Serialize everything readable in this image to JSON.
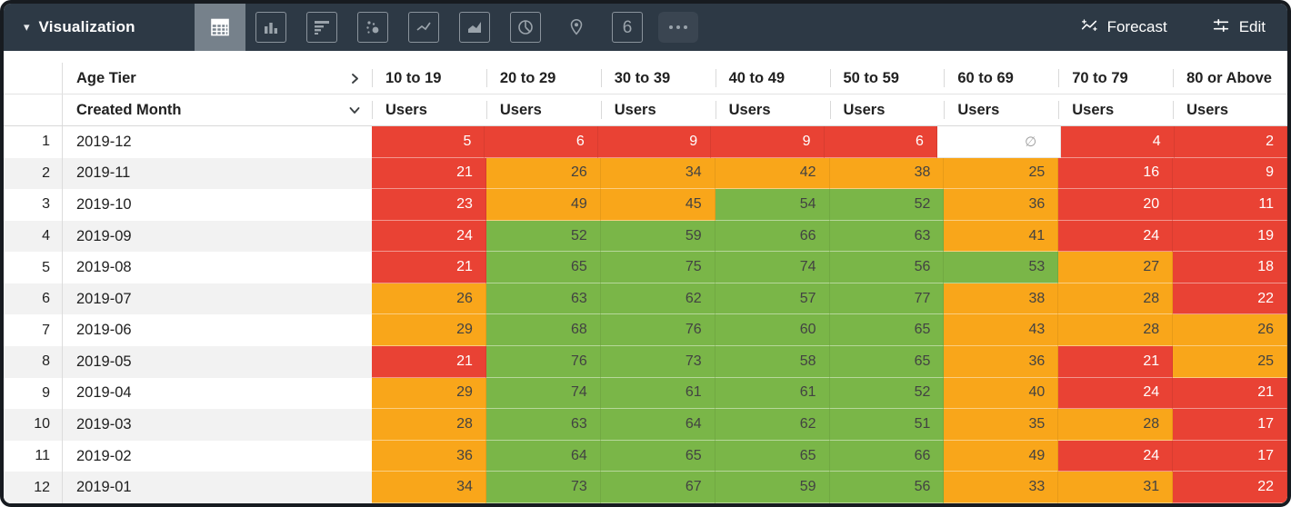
{
  "topbar": {
    "title": "Visualization",
    "forecast_label": "Forecast",
    "edit_label": "Edit",
    "single_value_glyph": "6",
    "viz_types": [
      "table",
      "column-chart",
      "bar-chart",
      "scatter-plot",
      "line-chart",
      "area-chart",
      "pie-chart",
      "map",
      "single-value",
      "more-options"
    ],
    "selected_viz": "table"
  },
  "table": {
    "dimension_header": "Age Tier",
    "row_header": "Created Month",
    "measure_label": "Users",
    "tiers": [
      "10 to 19",
      "20 to 29",
      "30 to 39",
      "40 to 49",
      "50 to 59",
      "60 to 69",
      "70 to 79",
      "80 or Above"
    ],
    "null_symbol": "∅",
    "rows": [
      {
        "index": 1,
        "month": "2019-12",
        "cells": [
          {
            "v": "5",
            "c": "red"
          },
          {
            "v": "6",
            "c": "red"
          },
          {
            "v": "9",
            "c": "red"
          },
          {
            "v": "9",
            "c": "red"
          },
          {
            "v": "6",
            "c": "red"
          },
          {
            "v": null,
            "c": "null"
          },
          {
            "v": "4",
            "c": "red"
          },
          {
            "v": "2",
            "c": "red"
          }
        ]
      },
      {
        "index": 2,
        "month": "2019-11",
        "cells": [
          {
            "v": "21",
            "c": "red"
          },
          {
            "v": "26",
            "c": "orange"
          },
          {
            "v": "34",
            "c": "orange"
          },
          {
            "v": "42",
            "c": "orange"
          },
          {
            "v": "38",
            "c": "orange"
          },
          {
            "v": "25",
            "c": "orange"
          },
          {
            "v": "16",
            "c": "red"
          },
          {
            "v": "9",
            "c": "red"
          }
        ]
      },
      {
        "index": 3,
        "month": "2019-10",
        "cells": [
          {
            "v": "23",
            "c": "red"
          },
          {
            "v": "49",
            "c": "orange"
          },
          {
            "v": "45",
            "c": "orange"
          },
          {
            "v": "54",
            "c": "green"
          },
          {
            "v": "52",
            "c": "green"
          },
          {
            "v": "36",
            "c": "orange"
          },
          {
            "v": "20",
            "c": "red"
          },
          {
            "v": "11",
            "c": "red"
          }
        ]
      },
      {
        "index": 4,
        "month": "2019-09",
        "cells": [
          {
            "v": "24",
            "c": "red"
          },
          {
            "v": "52",
            "c": "green"
          },
          {
            "v": "59",
            "c": "green"
          },
          {
            "v": "66",
            "c": "green"
          },
          {
            "v": "63",
            "c": "green"
          },
          {
            "v": "41",
            "c": "orange"
          },
          {
            "v": "24",
            "c": "red"
          },
          {
            "v": "19",
            "c": "red"
          }
        ]
      },
      {
        "index": 5,
        "month": "2019-08",
        "cells": [
          {
            "v": "21",
            "c": "red"
          },
          {
            "v": "65",
            "c": "green"
          },
          {
            "v": "75",
            "c": "green"
          },
          {
            "v": "74",
            "c": "green"
          },
          {
            "v": "56",
            "c": "green"
          },
          {
            "v": "53",
            "c": "green"
          },
          {
            "v": "27",
            "c": "orange"
          },
          {
            "v": "18",
            "c": "red"
          }
        ]
      },
      {
        "index": 6,
        "month": "2019-07",
        "cells": [
          {
            "v": "26",
            "c": "orange"
          },
          {
            "v": "63",
            "c": "green"
          },
          {
            "v": "62",
            "c": "green"
          },
          {
            "v": "57",
            "c": "green"
          },
          {
            "v": "77",
            "c": "green"
          },
          {
            "v": "38",
            "c": "orange"
          },
          {
            "v": "28",
            "c": "orange"
          },
          {
            "v": "22",
            "c": "red"
          }
        ]
      },
      {
        "index": 7,
        "month": "2019-06",
        "cells": [
          {
            "v": "29",
            "c": "orange"
          },
          {
            "v": "68",
            "c": "green"
          },
          {
            "v": "76",
            "c": "green"
          },
          {
            "v": "60",
            "c": "green"
          },
          {
            "v": "65",
            "c": "green"
          },
          {
            "v": "43",
            "c": "orange"
          },
          {
            "v": "28",
            "c": "orange"
          },
          {
            "v": "26",
            "c": "orange"
          }
        ]
      },
      {
        "index": 8,
        "month": "2019-05",
        "cells": [
          {
            "v": "21",
            "c": "red"
          },
          {
            "v": "76",
            "c": "green"
          },
          {
            "v": "73",
            "c": "green"
          },
          {
            "v": "58",
            "c": "green"
          },
          {
            "v": "65",
            "c": "green"
          },
          {
            "v": "36",
            "c": "orange"
          },
          {
            "v": "21",
            "c": "red"
          },
          {
            "v": "25",
            "c": "orange"
          }
        ]
      },
      {
        "index": 9,
        "month": "2019-04",
        "cells": [
          {
            "v": "29",
            "c": "orange"
          },
          {
            "v": "74",
            "c": "green"
          },
          {
            "v": "61",
            "c": "green"
          },
          {
            "v": "61",
            "c": "green"
          },
          {
            "v": "52",
            "c": "green"
          },
          {
            "v": "40",
            "c": "orange"
          },
          {
            "v": "24",
            "c": "red"
          },
          {
            "v": "21",
            "c": "red"
          }
        ]
      },
      {
        "index": 10,
        "month": "2019-03",
        "cells": [
          {
            "v": "28",
            "c": "orange"
          },
          {
            "v": "63",
            "c": "green"
          },
          {
            "v": "64",
            "c": "green"
          },
          {
            "v": "62",
            "c": "green"
          },
          {
            "v": "51",
            "c": "green"
          },
          {
            "v": "35",
            "c": "orange"
          },
          {
            "v": "28",
            "c": "orange"
          },
          {
            "v": "17",
            "c": "red"
          }
        ]
      },
      {
        "index": 11,
        "month": "2019-02",
        "cells": [
          {
            "v": "36",
            "c": "orange"
          },
          {
            "v": "64",
            "c": "green"
          },
          {
            "v": "65",
            "c": "green"
          },
          {
            "v": "65",
            "c": "green"
          },
          {
            "v": "66",
            "c": "green"
          },
          {
            "v": "49",
            "c": "orange"
          },
          {
            "v": "24",
            "c": "red"
          },
          {
            "v": "17",
            "c": "red"
          }
        ]
      },
      {
        "index": 12,
        "month": "2019-01",
        "cells": [
          {
            "v": "34",
            "c": "orange"
          },
          {
            "v": "73",
            "c": "green"
          },
          {
            "v": "67",
            "c": "green"
          },
          {
            "v": "59",
            "c": "green"
          },
          {
            "v": "56",
            "c": "green"
          },
          {
            "v": "33",
            "c": "orange"
          },
          {
            "v": "31",
            "c": "orange"
          },
          {
            "v": "22",
            "c": "red"
          }
        ]
      }
    ]
  },
  "colors": {
    "topbar_bg": "#2d3945",
    "selected_icon_bg": "#76818b",
    "red": "#e94234",
    "orange": "#f9a61a",
    "green": "#7ab648",
    "alt_row": "#f2f2f2",
    "null_text": "#9e9e9e"
  }
}
